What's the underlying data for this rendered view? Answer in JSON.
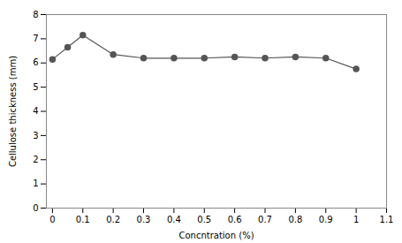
{
  "chart_data": {
    "type": "line",
    "x": [
      0,
      0.05,
      0.1,
      0.2,
      0.3,
      0.4,
      0.5,
      0.6,
      0.7,
      0.8,
      0.9,
      1.0
    ],
    "values": [
      6.15,
      6.65,
      7.15,
      6.35,
      6.2,
      6.2,
      6.2,
      6.25,
      6.2,
      6.25,
      6.2,
      5.75
    ],
    "xlabel": "Concntration (%)",
    "ylabel": "Cellulose thickness (mm)",
    "xlim": [
      -0.02,
      1.1
    ],
    "ylim": [
      0,
      8
    ],
    "xticks": [
      0,
      0.1,
      0.2,
      0.3,
      0.4,
      0.5,
      0.6,
      0.7,
      0.8,
      0.9,
      1.0,
      1.1
    ],
    "yticks": [
      0,
      1,
      2,
      3,
      4,
      5,
      6,
      7,
      8
    ],
    "color": "#555555",
    "marker": "circle"
  }
}
